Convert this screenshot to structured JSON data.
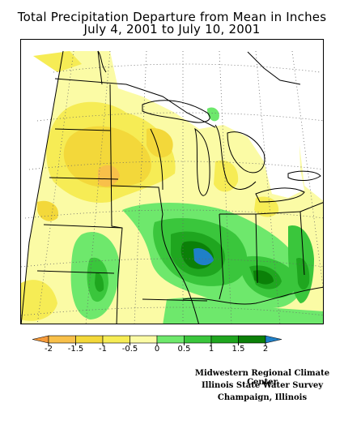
{
  "map": {
    "title_line1": "Total Precipitation Departure from Mean in Inches",
    "title_line2": "July 4, 2001 to July 10, 2001"
  },
  "legend": {
    "unit": "inches",
    "ticks": [
      "-2",
      "-1.5",
      "-1",
      "-0.5",
      "0",
      "0.5",
      "1",
      "1.5",
      "2"
    ],
    "colors": [
      "#f59a3a",
      "#f8c04a",
      "#f3d83a",
      "#f6ec55",
      "#fbfba5",
      "#6ee86c",
      "#3ac63c",
      "#1fa61f",
      "#0b8008",
      "#1f80c8"
    ]
  },
  "credits": {
    "line1": "Midwestern Regional Climate Center",
    "line2": "Illinois State Water Survey",
    "line3": "Champaign, Illinois"
  }
}
